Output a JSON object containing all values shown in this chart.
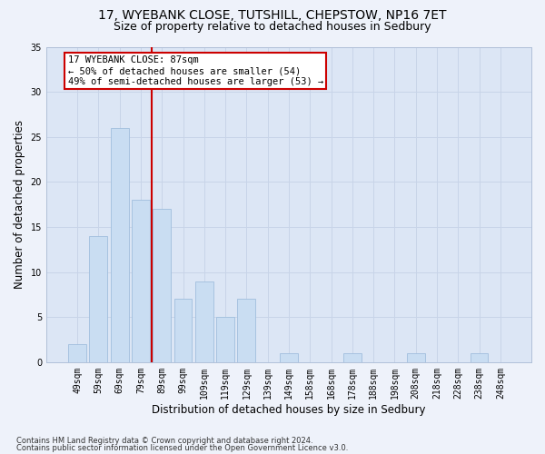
{
  "title_line1": "17, WYEBANK CLOSE, TUTSHILL, CHEPSTOW, NP16 7ET",
  "title_line2": "Size of property relative to detached houses in Sedbury",
  "xlabel": "Distribution of detached houses by size in Sedbury",
  "ylabel": "Number of detached properties",
  "categories": [
    "49sqm",
    "59sqm",
    "69sqm",
    "79sqm",
    "89sqm",
    "99sqm",
    "109sqm",
    "119sqm",
    "129sqm",
    "139sqm",
    "149sqm",
    "158sqm",
    "168sqm",
    "178sqm",
    "188sqm",
    "198sqm",
    "208sqm",
    "218sqm",
    "228sqm",
    "238sqm",
    "248sqm"
  ],
  "values": [
    2,
    14,
    26,
    18,
    17,
    7,
    9,
    5,
    7,
    0,
    1,
    0,
    0,
    1,
    0,
    0,
    1,
    0,
    0,
    1,
    0
  ],
  "bar_color": "#c9ddf2",
  "bar_edge_color": "#a0bedd",
  "vline_x_index": 3.5,
  "annotation_text_line1": "17 WYEBANK CLOSE: 87sqm",
  "annotation_text_line2": "← 50% of detached houses are smaller (54)",
  "annotation_text_line3": "49% of semi-detached houses are larger (53) →",
  "annotation_box_color": "#ffffff",
  "annotation_box_edge_color": "#cc0000",
  "vline_color": "#cc0000",
  "ylim": [
    0,
    35
  ],
  "yticks": [
    0,
    5,
    10,
    15,
    20,
    25,
    30,
    35
  ],
  "grid_color": "#c8d4e8",
  "plot_bg_color": "#dce6f5",
  "fig_bg_color": "#eef2fa",
  "footer_line1": "Contains HM Land Registry data © Crown copyright and database right 2024.",
  "footer_line2": "Contains public sector information licensed under the Open Government Licence v3.0.",
  "title_fontsize": 10,
  "subtitle_fontsize": 9,
  "tick_fontsize": 7,
  "xlabel_fontsize": 8.5,
  "ylabel_fontsize": 8.5,
  "annotation_fontsize": 7.5,
  "footer_fontsize": 6
}
